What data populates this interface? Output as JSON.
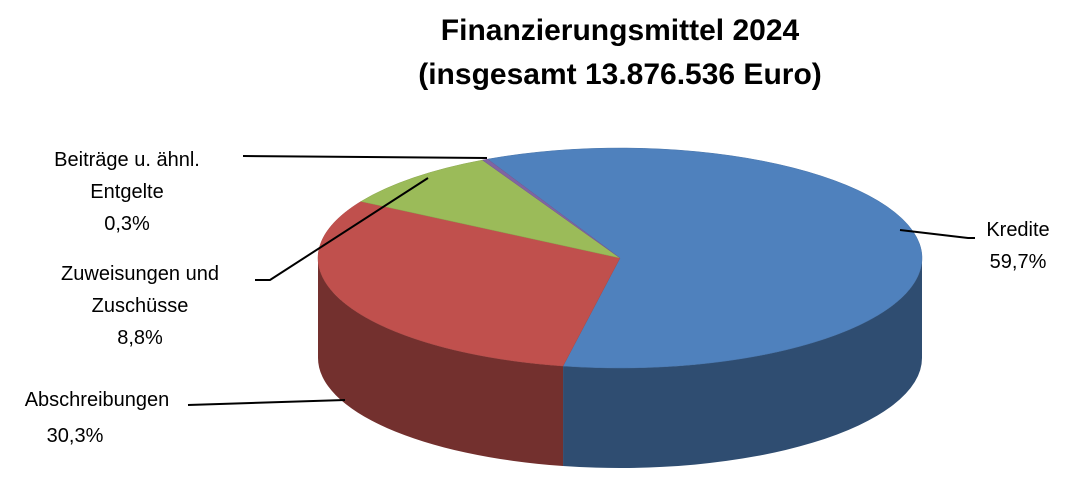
{
  "chart_data": {
    "type": "pie3d",
    "title": "Finanzierungsmittel 2024",
    "subtitle": "(insgesamt 13.876.536 Euro)",
    "categories": [
      "Kredite",
      "Abschreibungen",
      "Zuweisungen und Zuschüsse",
      "Beiträge u. ähnl. Entgelte"
    ],
    "values": [
      59.7,
      30.3,
      8.8,
      0.3
    ],
    "value_labels": [
      "59,7%",
      "30,3%",
      "8,8%",
      "0,3%"
    ],
    "colors": [
      "#4f81bd",
      "#c0504d",
      "#9bbb59",
      "#8064a2"
    ]
  }
}
